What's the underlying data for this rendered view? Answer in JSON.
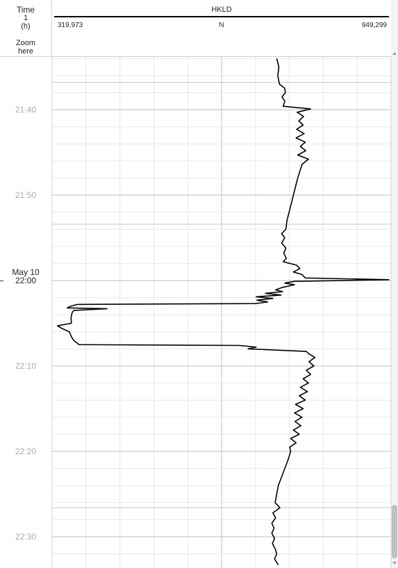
{
  "time_header": {
    "title": "Time",
    "index": "1",
    "unit": "(h)",
    "zoom_line1": "Zoom",
    "zoom_line2": "here"
  },
  "track_header": {
    "name": "HKLD",
    "scale_min": "319,973",
    "unit": "N",
    "scale_max": "949,299"
  },
  "date_label": "May 10",
  "time_labels": [
    {
      "text": "21:40",
      "minute": 40
    },
    {
      "text": "21:50",
      "minute": 50
    },
    {
      "text": "22:00",
      "minute": 60
    },
    {
      "text": "22:10",
      "minute": 70
    },
    {
      "text": "22:20",
      "minute": 80
    },
    {
      "text": "22:30",
      "minute": 90
    }
  ],
  "chart_data": {
    "type": "line",
    "title": "HKLD",
    "xlabel": "N",
    "ylabel": "Time (h)",
    "xlim": [
      319973,
      949299
    ],
    "ylim_minutes_after_21_00": [
      33.7,
      93.5
    ],
    "grid": true,
    "series": [
      {
        "name": "HKLD",
        "color": "#000000",
        "points": [
          {
            "t": 34.0,
            "v": 737000
          },
          {
            "t": 35.0,
            "v": 741000
          },
          {
            "t": 36.0,
            "v": 739000
          },
          {
            "t": 37.0,
            "v": 742000
          },
          {
            "t": 37.5,
            "v": 752000
          },
          {
            "t": 38.0,
            "v": 753000
          },
          {
            "t": 38.5,
            "v": 747000
          },
          {
            "t": 39.0,
            "v": 752000
          },
          {
            "t": 39.6,
            "v": 749000
          },
          {
            "t": 39.9,
            "v": 800000
          },
          {
            "t": 40.3,
            "v": 775000
          },
          {
            "t": 40.8,
            "v": 787000
          },
          {
            "t": 41.3,
            "v": 778000
          },
          {
            "t": 41.8,
            "v": 786000
          },
          {
            "t": 42.3,
            "v": 774000
          },
          {
            "t": 42.8,
            "v": 788000
          },
          {
            "t": 43.3,
            "v": 773000
          },
          {
            "t": 43.8,
            "v": 790000
          },
          {
            "t": 44.3,
            "v": 781000
          },
          {
            "t": 44.8,
            "v": 791000
          },
          {
            "t": 45.3,
            "v": 776000
          },
          {
            "t": 45.8,
            "v": 796000
          },
          {
            "t": 46.4,
            "v": 784000
          },
          {
            "t": 47.2,
            "v": 780000
          },
          {
            "t": 48.0,
            "v": 776000
          },
          {
            "t": 49.0,
            "v": 772000
          },
          {
            "t": 50.0,
            "v": 768000
          },
          {
            "t": 51.0,
            "v": 764000
          },
          {
            "t": 52.0,
            "v": 760000
          },
          {
            "t": 53.0,
            "v": 756000
          },
          {
            "t": 54.0,
            "v": 754000
          },
          {
            "t": 54.5,
            "v": 746000
          },
          {
            "t": 55.0,
            "v": 752000
          },
          {
            "t": 55.6,
            "v": 746000
          },
          {
            "t": 56.2,
            "v": 754000
          },
          {
            "t": 56.8,
            "v": 750000
          },
          {
            "t": 57.4,
            "v": 755000
          },
          {
            "t": 57.8,
            "v": 749000
          },
          {
            "t": 58.2,
            "v": 774000
          },
          {
            "t": 58.6,
            "v": 780000
          },
          {
            "t": 59.0,
            "v": 768000
          },
          {
            "t": 59.3,
            "v": 784000
          },
          {
            "t": 59.7,
            "v": 790000
          },
          {
            "t": 59.9,
            "v": 945000
          },
          {
            "t": 60.1,
            "v": 770000
          },
          {
            "t": 60.3,
            "v": 752000
          },
          {
            "t": 60.5,
            "v": 770000
          },
          {
            "t": 60.8,
            "v": 748000
          },
          {
            "t": 61.1,
            "v": 735000
          },
          {
            "t": 61.3,
            "v": 748000
          },
          {
            "t": 61.5,
            "v": 716000
          },
          {
            "t": 61.7,
            "v": 745000
          },
          {
            "t": 61.9,
            "v": 699000
          },
          {
            "t": 62.1,
            "v": 730000
          },
          {
            "t": 62.3,
            "v": 700000
          },
          {
            "t": 62.5,
            "v": 720000
          },
          {
            "t": 62.7,
            "v": 698000
          },
          {
            "t": 62.8,
            "v": 367000
          },
          {
            "t": 63.0,
            "v": 355000
          },
          {
            "t": 63.2,
            "v": 348000
          },
          {
            "t": 63.3,
            "v": 422000
          },
          {
            "t": 63.5,
            "v": 360000
          },
          {
            "t": 63.8,
            "v": 357000
          },
          {
            "t": 64.4,
            "v": 355000
          },
          {
            "t": 65.0,
            "v": 356000
          },
          {
            "t": 65.3,
            "v": 330000
          },
          {
            "t": 65.6,
            "v": 338000
          },
          {
            "t": 66.0,
            "v": 352000
          },
          {
            "t": 66.6,
            "v": 356000
          },
          {
            "t": 67.0,
            "v": 360000
          },
          {
            "t": 67.5,
            "v": 370000
          },
          {
            "t": 67.6,
            "v": 668000
          },
          {
            "t": 67.8,
            "v": 699000
          },
          {
            "t": 68.0,
            "v": 684000
          },
          {
            "t": 68.3,
            "v": 792000
          },
          {
            "t": 68.6,
            "v": 797000
          },
          {
            "t": 69.0,
            "v": 808000
          },
          {
            "t": 69.5,
            "v": 797000
          },
          {
            "t": 70.0,
            "v": 806000
          },
          {
            "t": 70.5,
            "v": 792000
          },
          {
            "t": 71.0,
            "v": 800000
          },
          {
            "t": 71.5,
            "v": 786000
          },
          {
            "t": 72.0,
            "v": 796000
          },
          {
            "t": 72.5,
            "v": 781000
          },
          {
            "t": 73.0,
            "v": 794000
          },
          {
            "t": 73.5,
            "v": 779000
          },
          {
            "t": 74.0,
            "v": 790000
          },
          {
            "t": 74.5,
            "v": 772000
          },
          {
            "t": 75.0,
            "v": 786000
          },
          {
            "t": 75.5,
            "v": 770000
          },
          {
            "t": 76.0,
            "v": 784000
          },
          {
            "t": 76.5,
            "v": 771000
          },
          {
            "t": 77.0,
            "v": 782000
          },
          {
            "t": 77.5,
            "v": 768000
          },
          {
            "t": 78.0,
            "v": 779000
          },
          {
            "t": 78.5,
            "v": 763000
          },
          {
            "t": 79.0,
            "v": 773000
          },
          {
            "t": 79.5,
            "v": 761000
          },
          {
            "t": 80.0,
            "v": 763000
          },
          {
            "t": 81.0,
            "v": 758000
          },
          {
            "t": 82.0,
            "v": 752000
          },
          {
            "t": 83.0,
            "v": 746000
          },
          {
            "t": 84.0,
            "v": 740000
          },
          {
            "t": 85.0,
            "v": 737000
          },
          {
            "t": 86.0,
            "v": 734000
          },
          {
            "t": 86.6,
            "v": 743000
          },
          {
            "t": 87.2,
            "v": 730000
          },
          {
            "t": 87.8,
            "v": 735000
          },
          {
            "t": 88.4,
            "v": 728000
          },
          {
            "t": 89.0,
            "v": 732000
          },
          {
            "t": 89.6,
            "v": 728000
          },
          {
            "t": 90.2,
            "v": 733000
          },
          {
            "t": 90.8,
            "v": 729000
          },
          {
            "t": 91.4,
            "v": 734000
          },
          {
            "t": 92.0,
            "v": 737000
          },
          {
            "t": 92.6,
            "v": 733000
          },
          {
            "t": 93.3,
            "v": 740000
          }
        ]
      }
    ]
  }
}
